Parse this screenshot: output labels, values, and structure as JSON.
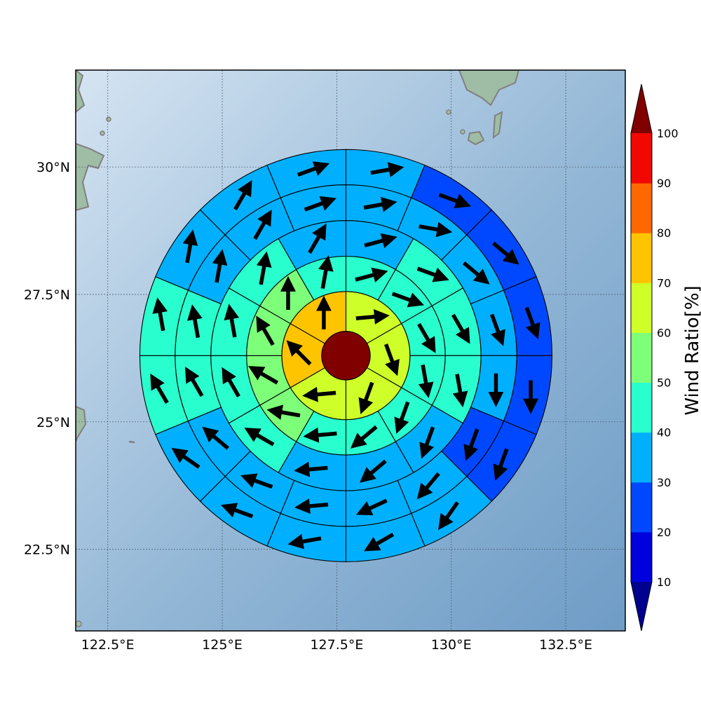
{
  "map": {
    "lon_range": [
      121.8,
      133.8
    ],
    "lat_range": [
      20.9,
      31.9
    ],
    "lon_ticks": [
      122.5,
      125,
      127.5,
      130,
      132.5
    ],
    "lon_tick_labels": [
      "122.5°E",
      "125°E",
      "127.5°E",
      "130°E",
      "132.5°E"
    ],
    "lat_ticks": [
      22.5,
      25,
      27.5,
      30
    ],
    "lat_tick_labels": [
      "22.5°N",
      "25°N",
      "27.5°N",
      "30°N"
    ],
    "gridlines": true,
    "center": {
      "lon": 127.7,
      "lat": 26.3
    },
    "ring_radii_deg": [
      0.53,
      1.4,
      2.17,
      2.95,
      3.73,
      4.5
    ],
    "colors": {
      "ocean_light": "#c9dcee",
      "ocean_dark": "#7ea8cd",
      "land": "#9fb9a4",
      "coast": "#808080"
    }
  },
  "colorbar": {
    "label": "Wind Ratio[%]",
    "levels": [
      10,
      20,
      30,
      40,
      50,
      60,
      70,
      80,
      90,
      100
    ],
    "tick_labels": [
      "10",
      "20",
      "30",
      "40",
      "50",
      "60",
      "70",
      "80",
      "90",
      "100"
    ],
    "colors": [
      "#0000df",
      "#0048ff",
      "#00b0ff",
      "#29ffce",
      "#7dff7a",
      "#ceff29",
      "#ffc400",
      "#ff6800",
      "#f10800"
    ],
    "under_color": "#00008f",
    "over_color": "#800000"
  },
  "chart_data": {
    "type": "heatmap",
    "description_units": "wind ratio percent per polar sector; arrows give mean wind direction (degrees, meteorological 'toward' bearing)",
    "center_value": 100,
    "rings": [
      {
        "ring": 1,
        "sectors": 6,
        "values": [
          65,
          65,
          65,
          65,
          75,
          75
        ],
        "directions": [
          85,
          160,
          200,
          265,
          315,
          0
        ]
      },
      {
        "ring": 2,
        "sectors": 12,
        "values": [
          45,
          45,
          45,
          45,
          45,
          45,
          45,
          55,
          55,
          55,
          55,
          45
        ],
        "directions": [
          75,
          110,
          150,
          170,
          200,
          230,
          265,
          280,
          300,
          330,
          0,
          10
        ]
      },
      {
        "ring": 3,
        "sectors": 12,
        "values": [
          35,
          45,
          45,
          45,
          35,
          35,
          35,
          45,
          45,
          45,
          45,
          35
        ],
        "directions": [
          75,
          110,
          150,
          170,
          200,
          230,
          265,
          300,
          330,
          350,
          10,
          30
        ]
      },
      {
        "ring": 4,
        "sectors": 16,
        "values": [
          35,
          35,
          35,
          35,
          35,
          25,
          35,
          35,
          35,
          35,
          35,
          45,
          45,
          35,
          35,
          35
        ],
        "directions": [
          80,
          100,
          130,
          160,
          180,
          200,
          220,
          245,
          265,
          290,
          310,
          330,
          350,
          10,
          30,
          70
        ]
      },
      {
        "ring": 5,
        "sectors": 16,
        "values": [
          35,
          25,
          25,
          25,
          25,
          25,
          35,
          35,
          35,
          35,
          35,
          45,
          45,
          35,
          35,
          35
        ],
        "directions": [
          80,
          110,
          130,
          160,
          180,
          200,
          215,
          240,
          260,
          290,
          305,
          330,
          350,
          10,
          30,
          70
        ]
      },
      {
        "ring": 6,
        "sectors": 16,
        "values": [
          25,
          25,
          25,
          25,
          25,
          25,
          35,
          45,
          35,
          25,
          35,
          35,
          45,
          45,
          35,
          35
        ],
        "directions": [
          100,
          120,
          150,
          165,
          180,
          200,
          220,
          250,
          265,
          295,
          300,
          330,
          345,
          15,
          30,
          80
        ]
      }
    ]
  }
}
